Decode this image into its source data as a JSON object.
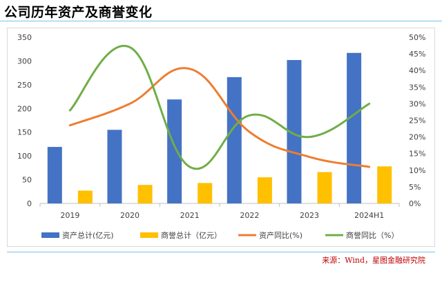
{
  "page": {
    "title": "公司历年资产及商誉变化",
    "source": "来源：Wind，星图金融研究院"
  },
  "chart_data": {
    "type": "bar",
    "title": "公司历年资产及商誉变化",
    "categories": [
      "2019",
      "2020",
      "2021",
      "2022",
      "2023",
      "2024H1"
    ],
    "series": [
      {
        "name": "资产总计(亿元)",
        "kind": "bar",
        "axis": "left",
        "color": "#4472c4",
        "values": [
          119,
          155,
          219,
          266,
          302,
          317
        ]
      },
      {
        "name": "商誉总计（亿元）",
        "kind": "bar",
        "axis": "left",
        "color": "#ffc000",
        "values": [
          27,
          39,
          43,
          55,
          66,
          78
        ]
      },
      {
        "name": "资产同比(%)",
        "kind": "line",
        "axis": "right",
        "color": "#ed7d31",
        "values": [
          23.5,
          30,
          40.5,
          21.5,
          14,
          11
        ]
      },
      {
        "name": "商誉同比（%）",
        "kind": "line",
        "axis": "right",
        "color": "#70ad47",
        "values": [
          28,
          47,
          11,
          26.5,
          20,
          30
        ]
      }
    ],
    "y_left": {
      "min": 0,
      "max": 350,
      "step": 50,
      "ticks": [
        "0",
        "50",
        "100",
        "150",
        "200",
        "250",
        "300",
        "350"
      ]
    },
    "y_right": {
      "min": 0,
      "max": 50,
      "step": 5,
      "ticks": [
        "0%",
        "5%",
        "10%",
        "15%",
        "20%",
        "25%",
        "30%",
        "35%",
        "40%",
        "45%",
        "50%"
      ]
    },
    "legend": "bottom",
    "grid": false
  }
}
